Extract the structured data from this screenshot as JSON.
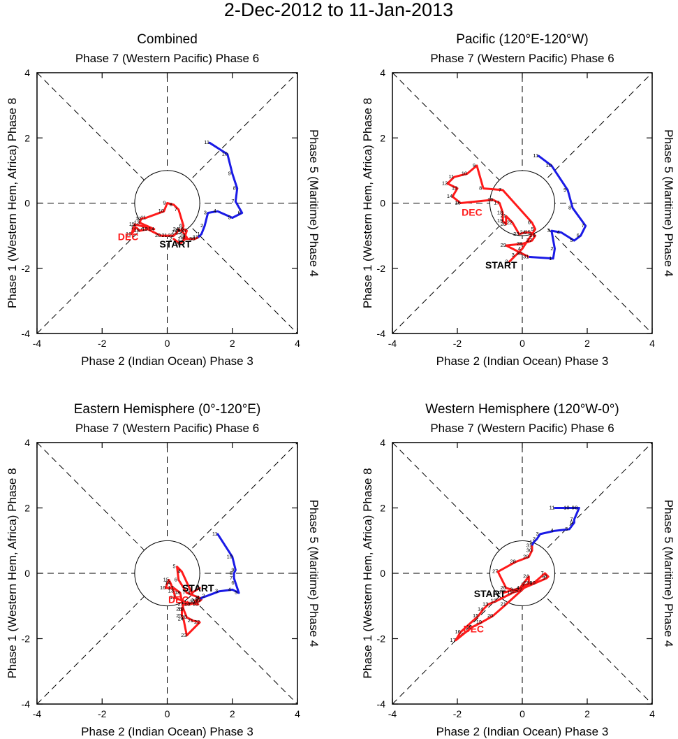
{
  "figure_title": "2-Dec-2012 to 11-Jan-2013",
  "labels": {
    "top": "Phase 7 (Western Pacific) Phase 6",
    "bottom": "Phase 2 (Indian Ocean) Phase 3",
    "left": "Phase 1 (Western Hem, Africa) Phase 8",
    "right": "Phase 5 (Maritime) Phase 4",
    "start": "START",
    "dec": "DEC"
  },
  "colors": {
    "dec": "#ff1a1a",
    "jan": "#1a1ae6",
    "axes": "#000000",
    "text_dec": "#ff1a1a"
  },
  "chart_data": [
    {
      "type": "line",
      "title": "Combined",
      "xlabel": "Phase 2 (Indian Ocean) Phase 3",
      "ylabel": "Phase 1 (Western Hem, Africa) Phase 8",
      "xlim": [
        -4,
        4
      ],
      "ylim": [
        -4,
        4
      ],
      "xticks": [
        -4,
        -2,
        0,
        2,
        4
      ],
      "yticks": [
        -4,
        -2,
        0,
        2,
        4
      ],
      "unit_circle": true,
      "start_label": {
        "text": "START",
        "x": 0.25,
        "y": -1.25
      },
      "dec_label": {
        "text": "DEC",
        "x": -1.2,
        "y": -1.03
      },
      "series": [
        {
          "name": "Dec",
          "color": "#ff1a1a",
          "days": [
            "2",
            "3",
            "4",
            "5",
            "6",
            "7",
            "8",
            "9",
            "10",
            "11",
            "12",
            "13",
            "14",
            "15",
            "16",
            "17",
            "18",
            "19",
            "20",
            "21",
            "22",
            "23",
            "24",
            "25",
            "26",
            "27",
            "28",
            "29",
            "30",
            "31"
          ],
          "points": [
            [
              0.2,
              -1.1
            ],
            [
              0.4,
              -1.25
            ],
            [
              0.6,
              -1.05
            ],
            [
              0.45,
              -0.85
            ],
            [
              0.5,
              -0.7
            ],
            [
              0.35,
              -0.2
            ],
            [
              0.2,
              -0.05
            ],
            [
              0.0,
              0.0
            ],
            [
              -0.1,
              -0.25
            ],
            [
              -0.65,
              -0.45
            ],
            [
              -0.8,
              -0.48
            ],
            [
              -0.85,
              -0.6
            ],
            [
              -0.4,
              -0.8
            ],
            [
              -1.0,
              -0.65
            ],
            [
              -1.1,
              -0.95
            ],
            [
              -0.95,
              -0.75
            ],
            [
              -0.85,
              -0.85
            ],
            [
              -0.6,
              -0.8
            ],
            [
              -0.2,
              -1.0
            ],
            [
              0.0,
              -1.0
            ],
            [
              0.2,
              -1.0
            ],
            [
              0.3,
              -0.9
            ],
            [
              0.35,
              -0.8
            ],
            [
              0.4,
              -0.85
            ],
            [
              0.5,
              -0.8
            ],
            [
              0.6,
              -0.85
            ],
            [
              0.55,
              -1.0
            ],
            [
              0.5,
              -1.1
            ],
            [
              0.85,
              -1.1
            ],
            [
              0.95,
              -1.05
            ]
          ]
        },
        {
          "name": "Jan",
          "color": "#1a1ae6",
          "days": [
            "1",
            "2",
            "3",
            "4",
            "5",
            "6",
            "7",
            "8",
            "9",
            "10",
            "11"
          ],
          "points": [
            [
              1.05,
              -0.95
            ],
            [
              1.15,
              -0.7
            ],
            [
              1.25,
              -0.3
            ],
            [
              1.55,
              -0.25
            ],
            [
              2.0,
              -0.45
            ],
            [
              2.3,
              -0.3
            ],
            [
              2.1,
              0.05
            ],
            [
              2.15,
              0.45
            ],
            [
              2.0,
              0.9
            ],
            [
              1.85,
              1.5
            ],
            [
              1.3,
              1.85
            ]
          ]
        }
      ]
    },
    {
      "type": "line",
      "title": "Pacific (120°E-120°W)",
      "xlabel": "Phase 2 (Indian Ocean) Phase 3",
      "ylabel": "Phase 1 (Western Hem, Africa) Phase 8",
      "xlim": [
        -4,
        4
      ],
      "ylim": [
        -4,
        4
      ],
      "xticks": [
        -4,
        -2,
        0,
        2,
        4
      ],
      "yticks": [
        -4,
        -2,
        0,
        2,
        4
      ],
      "unit_circle": true,
      "start_label": {
        "text": "START",
        "x": -0.65,
        "y": -1.9
      },
      "dec_label": {
        "text": "DEC",
        "x": -1.55,
        "y": -0.28
      },
      "series": [
        {
          "name": "Dec",
          "color": "#ff1a1a",
          "days": [
            "2",
            "3",
            "4",
            "5",
            "6",
            "7",
            "8",
            "9",
            "10",
            "11",
            "12",
            "13",
            "14",
            "15",
            "16",
            "17",
            "18",
            "19",
            "20",
            "21",
            "22",
            "23",
            "24",
            "25",
            "26",
            "27",
            "28",
            "29",
            "30",
            "31"
          ],
          "points": [
            [
              -0.4,
              -1.8
            ],
            [
              -0.2,
              -1.6
            ],
            [
              0.0,
              -1.4
            ],
            [
              0.4,
              -0.8
            ],
            [
              0.3,
              -0.6
            ],
            [
              -0.6,
              0.4
            ],
            [
              -1.2,
              0.45
            ],
            [
              -1.4,
              1.15
            ],
            [
              -1.7,
              0.9
            ],
            [
              -2.1,
              0.8
            ],
            [
              -2.3,
              0.6
            ],
            [
              -2.0,
              0.45
            ],
            [
              -2.15,
              0.2
            ],
            [
              -1.9,
              0.0
            ],
            [
              -0.9,
              0.1
            ],
            [
              -0.7,
              0.0
            ],
            [
              -0.6,
              -0.3
            ],
            [
              -0.6,
              -0.55
            ],
            [
              -0.5,
              -0.65
            ],
            [
              -0.5,
              -0.4
            ],
            [
              -0.3,
              -0.6
            ],
            [
              -0.1,
              -0.95
            ],
            [
              0.1,
              -0.9
            ],
            [
              0.25,
              -0.9
            ],
            [
              0.4,
              -1.0
            ],
            [
              0.3,
              -1.15
            ],
            [
              0.0,
              -1.25
            ],
            [
              -0.5,
              -1.3
            ],
            [
              0.0,
              -1.55
            ],
            [
              0.2,
              -1.65
            ]
          ]
        },
        {
          "name": "Jan",
          "color": "#1a1ae6",
          "days": [
            "1",
            "2",
            "3",
            "4",
            "5",
            "6",
            "7",
            "8",
            "9",
            "10",
            "11"
          ],
          "points": [
            [
              0.95,
              -1.7
            ],
            [
              1.0,
              -1.4
            ],
            [
              0.9,
              -0.85
            ],
            [
              1.2,
              -0.9
            ],
            [
              1.6,
              -1.15
            ],
            [
              1.8,
              -1.0
            ],
            [
              1.95,
              -0.7
            ],
            [
              1.55,
              -0.15
            ],
            [
              1.4,
              0.4
            ],
            [
              0.9,
              1.15
            ],
            [
              0.5,
              1.45
            ]
          ]
        }
      ]
    },
    {
      "type": "line",
      "title": "Eastern Hemisphere (0°-120°E)",
      "xlabel": "Phase 2 (Indian Ocean) Phase 3",
      "ylabel": "Phase 1 (Western Hem, Africa) Phase 8",
      "xlim": [
        -4,
        4
      ],
      "ylim": [
        -4,
        4
      ],
      "xticks": [
        -4,
        -2,
        0,
        2,
        4
      ],
      "yticks": [
        -4,
        -2,
        0,
        2,
        4
      ],
      "unit_circle": true,
      "start_label": {
        "text": "START",
        "x": 0.95,
        "y": -0.45
      },
      "dec_label": {
        "text": "DEC",
        "x": 0.35,
        "y": -0.8
      },
      "series": [
        {
          "name": "Dec",
          "color": "#ff1a1a",
          "days": [
            "2",
            "3",
            "4",
            "5",
            "6",
            "7",
            "8",
            "9",
            "10",
            "11",
            "12",
            "13",
            "14",
            "15",
            "16",
            "17",
            "18",
            "19",
            "20",
            "21",
            "22",
            "23",
            "24",
            "25",
            "26",
            "27",
            "28",
            "29",
            "30",
            "31"
          ],
          "points": [
            [
              1.0,
              -0.45
            ],
            [
              0.75,
              -0.6
            ],
            [
              0.45,
              0.05
            ],
            [
              0.3,
              0.2
            ],
            [
              0.35,
              -0.2
            ],
            [
              0.6,
              -0.6
            ],
            [
              1.0,
              -0.75
            ],
            [
              0.85,
              -0.85
            ],
            [
              0.95,
              -0.95
            ],
            [
              0.6,
              -0.9
            ],
            [
              0.25,
              -0.75
            ],
            [
              0.2,
              -0.55
            ],
            [
              0.1,
              -0.3
            ],
            [
              0.05,
              -0.2
            ],
            [
              -0.05,
              -0.45
            ],
            [
              0.2,
              -0.45
            ],
            [
              0.4,
              -0.6
            ],
            [
              0.5,
              -1.1
            ],
            [
              0.6,
              -1.35
            ],
            [
              0.8,
              -1.45
            ],
            [
              1.0,
              -1.5
            ],
            [
              0.6,
              -1.9
            ],
            [
              0.5,
              -1.4
            ],
            [
              0.45,
              -1.3
            ],
            [
              0.45,
              -1.1
            ],
            [
              0.5,
              -0.95
            ],
            [
              0.7,
              -0.95
            ],
            [
              0.85,
              -0.9
            ],
            [
              1.0,
              -0.85
            ],
            [
              1.05,
              -0.8
            ]
          ]
        },
        {
          "name": "Jan",
          "color": "#1a1ae6",
          "days": [
            "1",
            "2",
            "3",
            "4",
            "5",
            "6",
            "7",
            "8",
            "9",
            "10",
            "11"
          ],
          "points": [
            [
              1.05,
              -0.75
            ],
            [
              1.2,
              -0.7
            ],
            [
              1.6,
              -0.55
            ],
            [
              2.0,
              -0.5
            ],
            [
              2.2,
              -0.6
            ],
            [
              2.1,
              -0.3
            ],
            [
              2.05,
              -0.15
            ],
            [
              2.05,
              0.0
            ],
            [
              2.1,
              0.1
            ],
            [
              2.0,
              0.5
            ],
            [
              1.55,
              1.2
            ]
          ]
        }
      ]
    },
    {
      "type": "line",
      "title": "Western Hemisphere (120°W-0°)",
      "xlabel": "Phase 2 (Indian Ocean) Phase 3",
      "ylabel": "Phase 1 (Western Hem, Africa) Phase 8",
      "xlim": [
        -4,
        4
      ],
      "ylim": [
        -4,
        4
      ],
      "xticks": [
        -4,
        -2,
        0,
        2,
        4
      ],
      "yticks": [
        -4,
        -2,
        0,
        2,
        4
      ],
      "unit_circle": true,
      "start_label": {
        "text": "START",
        "x": -1.0,
        "y": -0.62
      },
      "dec_label": {
        "text": "DEC",
        "x": -1.5,
        "y": -1.7
      },
      "series": [
        {
          "name": "Dec",
          "color": "#ff1a1a",
          "days": [
            "2",
            "3",
            "4",
            "5",
            "6",
            "7",
            "8",
            "9",
            "10",
            "11",
            "12",
            "13",
            "14",
            "15",
            "16",
            "17",
            "18",
            "19",
            "20",
            "21",
            "22",
            "23",
            "24",
            "25",
            "26",
            "27",
            "28",
            "29",
            "30",
            "31"
          ],
          "points": [
            [
              -0.6,
              -0.6
            ],
            [
              -0.25,
              -0.5
            ],
            [
              -0.05,
              -0.45
            ],
            [
              0.1,
              -0.35
            ],
            [
              0.35,
              -0.3
            ],
            [
              0.7,
              0.0
            ],
            [
              0.8,
              -0.1
            ],
            [
              0.75,
              -0.15
            ],
            [
              0.4,
              -0.3
            ],
            [
              -0.3,
              -0.6
            ],
            [
              -0.8,
              -0.85
            ],
            [
              -1.05,
              -0.95
            ],
            [
              -1.2,
              -1.1
            ],
            [
              -1.35,
              -1.3
            ],
            [
              -1.9,
              -1.8
            ],
            [
              -2.05,
              -2.05
            ],
            [
              -1.55,
              -1.65
            ],
            [
              -1.25,
              -1.5
            ],
            [
              -0.9,
              -1.3
            ],
            [
              -0.5,
              -0.95
            ],
            [
              0.0,
              -0.5
            ],
            [
              0.2,
              -0.3
            ],
            [
              0.2,
              -0.1
            ],
            [
              -0.15,
              -0.55
            ],
            [
              -0.5,
              -0.45
            ],
            [
              -0.75,
              0.05
            ],
            [
              -0.2,
              0.35
            ],
            [
              0.2,
              0.5
            ],
            [
              0.3,
              0.7
            ],
            [
              0.3,
              0.85
            ]
          ]
        },
        {
          "name": "Jan",
          "color": "#1a1ae6",
          "days": [
            "1",
            "2",
            "3",
            "4",
            "5",
            "6",
            "7",
            "8",
            "9",
            "10",
            "11"
          ],
          "points": [
            [
              0.35,
              0.95
            ],
            [
              0.45,
              1.05
            ],
            [
              0.55,
              1.2
            ],
            [
              1.0,
              1.3
            ],
            [
              1.45,
              1.35
            ],
            [
              1.6,
              1.55
            ],
            [
              1.6,
              1.65
            ],
            [
              1.75,
              2.0
            ],
            [
              1.65,
              2.0
            ],
            [
              1.45,
              2.0
            ],
            [
              1.0,
              2.0
            ]
          ]
        }
      ]
    }
  ]
}
